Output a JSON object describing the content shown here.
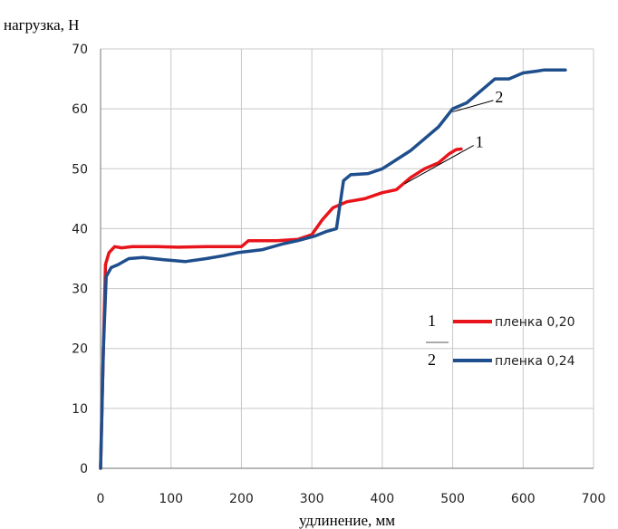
{
  "chart_data": {
    "type": "line",
    "title": "",
    "ylabel": "нагрузка, Н",
    "xlabel": "удлинение, мм",
    "xlim": [
      0,
      700
    ],
    "ylim": [
      0,
      70
    ],
    "x_ticks": [
      0,
      100,
      200,
      300,
      400,
      500,
      600,
      700
    ],
    "y_ticks": [
      0,
      10,
      20,
      30,
      40,
      50,
      60,
      70
    ],
    "grid": true,
    "legend_position": "right",
    "colors": {
      "series1": "#e8141b",
      "series2": "#1f4e8c",
      "grid": "#c8c8c8",
      "axis": "#8c8c8c"
    },
    "series": [
      {
        "name": "пленка 0,20",
        "number": "1",
        "color": "#e8141b",
        "points": [
          [
            0,
            0
          ],
          [
            3,
            15
          ],
          [
            7,
            34
          ],
          [
            12,
            36
          ],
          [
            20,
            37
          ],
          [
            30,
            36.8
          ],
          [
            45,
            37
          ],
          [
            80,
            37
          ],
          [
            110,
            36.9
          ],
          [
            150,
            37
          ],
          [
            200,
            37
          ],
          [
            210,
            38
          ],
          [
            250,
            38
          ],
          [
            280,
            38.2
          ],
          [
            300,
            39
          ],
          [
            315,
            41.5
          ],
          [
            330,
            43.5
          ],
          [
            350,
            44.5
          ],
          [
            375,
            45
          ],
          [
            400,
            46
          ],
          [
            420,
            46.5
          ],
          [
            440,
            48.5
          ],
          [
            460,
            50
          ],
          [
            480,
            51
          ],
          [
            495,
            52.5
          ],
          [
            505,
            53.2
          ],
          [
            512,
            53.3
          ]
        ]
      },
      {
        "name": "пленка 0,24",
        "number": "2",
        "color": "#1f4e8c",
        "points": [
          [
            0,
            0
          ],
          [
            4,
            20
          ],
          [
            8,
            32
          ],
          [
            15,
            33.5
          ],
          [
            25,
            34
          ],
          [
            40,
            35
          ],
          [
            60,
            35.2
          ],
          [
            90,
            34.8
          ],
          [
            120,
            34.5
          ],
          [
            150,
            35
          ],
          [
            175,
            35.5
          ],
          [
            195,
            36
          ],
          [
            230,
            36.5
          ],
          [
            260,
            37.5
          ],
          [
            280,
            38
          ],
          [
            305,
            38.8
          ],
          [
            320,
            39.5
          ],
          [
            335,
            40
          ],
          [
            345,
            48
          ],
          [
            355,
            49
          ],
          [
            380,
            49.2
          ],
          [
            400,
            50
          ],
          [
            420,
            51.5
          ],
          [
            440,
            53
          ],
          [
            460,
            55
          ],
          [
            480,
            57
          ],
          [
            500,
            60
          ],
          [
            520,
            61
          ],
          [
            540,
            63
          ],
          [
            560,
            65
          ],
          [
            580,
            65
          ],
          [
            600,
            66
          ],
          [
            620,
            66.3
          ],
          [
            630,
            66.5
          ],
          [
            660,
            66.5
          ]
        ]
      }
    ],
    "annotations": [
      {
        "label": "1",
        "x": 432,
        "y": 47.5,
        "label_x": 540,
        "label_y": 54.5
      },
      {
        "label": "2",
        "x": 500,
        "y": 59.5,
        "label_x": 568,
        "label_y": 62
      }
    ]
  }
}
